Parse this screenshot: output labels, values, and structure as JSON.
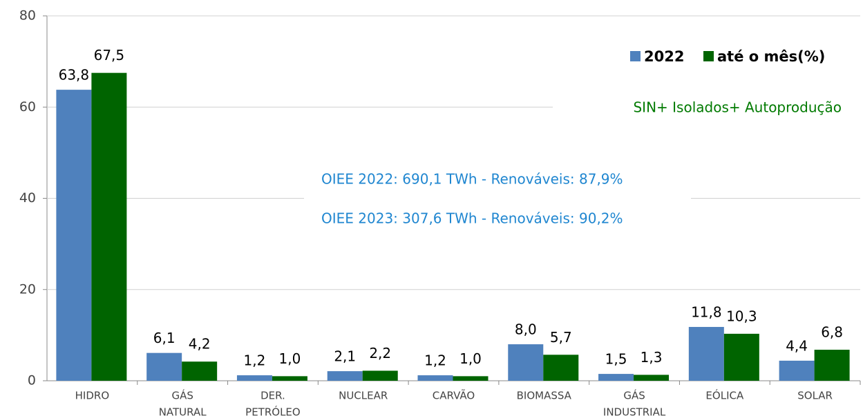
{
  "chart_data": {
    "type": "bar",
    "categories": [
      [
        "HIDRO"
      ],
      [
        "GÁS",
        "NATURAL"
      ],
      [
        "DER.",
        "PETRÓLEO"
      ],
      [
        "NUCLEAR"
      ],
      [
        "CARVÃO"
      ],
      [
        "BIOMASSA"
      ],
      [
        "GÁS",
        "INDUSTRIAL"
      ],
      [
        "EÓLICA"
      ],
      [
        "SOLAR"
      ]
    ],
    "series": [
      {
        "name": "2022",
        "color": "#4f81bd",
        "values": [
          63.8,
          6.1,
          1.2,
          2.1,
          1.2,
          8.0,
          1.5,
          11.8,
          4.4
        ],
        "value_labels": [
          "63,8",
          "6,1",
          "1,2",
          "2,1",
          "1,2",
          "8,0",
          "1,5",
          "11,8",
          "4,4"
        ]
      },
      {
        "name": "até o mês(%)",
        "color": "#006400",
        "values": [
          67.5,
          4.2,
          1.0,
          2.2,
          1.0,
          5.7,
          1.3,
          10.3,
          6.8
        ],
        "value_labels": [
          "67,5",
          "4,2",
          "1,0",
          "2,2",
          "1,0",
          "5,7",
          "1,3",
          "10,3",
          "6,8"
        ]
      }
    ],
    "annotations": [
      "SIN+ Isolados+ Autoprodução",
      "OIEE 2022: 690,1 TWh - Renováveis: 87,9%",
      "OIEE 2023: 307,6 TWh - Renováveis: 90,2%"
    ],
    "ylim": [
      0,
      80
    ],
    "yticks": [
      0,
      20,
      40,
      60,
      80
    ],
    "grid": true,
    "legend": "top-right"
  }
}
